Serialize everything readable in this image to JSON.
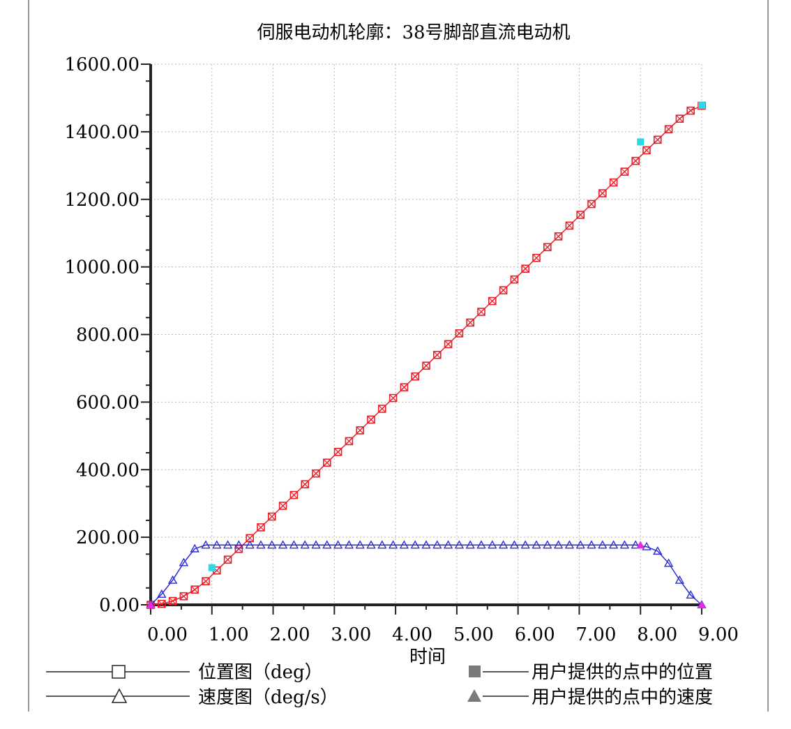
{
  "chart_data": {
    "type": "line",
    "title": "伺服电动机轮廓：38号脚部直流电动机",
    "xlabel": "时间",
    "ylabel": "",
    "xlim": [
      0,
      9
    ],
    "ylim": [
      0,
      1600
    ],
    "x_ticks": [
      "0.00",
      "1.00",
      "2.00",
      "3.00",
      "4.00",
      "5.00",
      "6.00",
      "7.00",
      "8.00",
      "9.00"
    ],
    "y_ticks": [
      "0.00",
      "200.00",
      "400.00",
      "600.00",
      "800.00",
      "1000.00",
      "1200.00",
      "1400.00",
      "1600.00"
    ],
    "grid": true,
    "series": [
      {
        "name": "位置图（deg）",
        "color": "#e8202a",
        "marker": "square-x",
        "x": [
          0,
          0.18,
          0.36,
          0.54,
          0.72,
          0.9,
          1.08,
          1.26,
          1.44,
          1.62,
          1.8,
          1.98,
          2.16,
          2.34,
          2.52,
          2.7,
          2.88,
          3.06,
          3.24,
          3.42,
          3.6,
          3.78,
          3.96,
          4.14,
          4.32,
          4.5,
          4.68,
          4.86,
          5.04,
          5.22,
          5.4,
          5.58,
          5.76,
          5.94,
          6.12,
          6.3,
          6.48,
          6.66,
          6.84,
          7.02,
          7.2,
          7.38,
          7.56,
          7.74,
          7.92,
          8.1,
          8.28,
          8.46,
          8.64,
          8.82,
          9.0
        ],
        "y": [
          0,
          2.8,
          11.3,
          25.4,
          45.1,
          69.8,
          101.7,
          133.6,
          165.5,
          197.4,
          229.3,
          261.2,
          293.1,
          325.0,
          356.8,
          388.7,
          420.6,
          452.5,
          484.4,
          516.3,
          548.2,
          580.1,
          612.0,
          643.9,
          675.8,
          707.7,
          739.6,
          771.5,
          803.4,
          835.3,
          867.1,
          899.0,
          930.9,
          962.8,
          994.7,
          1026.6,
          1058.5,
          1090.4,
          1122.3,
          1154.2,
          1186.1,
          1218.0,
          1249.9,
          1281.8,
          1313.7,
          1345.2,
          1376.3,
          1407.5,
          1438.6,
          1462.5,
          1477.0
        ]
      },
      {
        "name": "速度图（deg/s）",
        "color": "#2a2ad8",
        "marker": "triangle",
        "x": [
          0,
          0.18,
          0.36,
          0.54,
          0.72,
          0.9,
          1.08,
          1.26,
          1.44,
          1.62,
          1.8,
          1.98,
          2.16,
          2.34,
          2.52,
          2.7,
          2.88,
          3.06,
          3.24,
          3.42,
          3.6,
          3.78,
          3.96,
          4.14,
          4.32,
          4.5,
          4.68,
          4.86,
          5.04,
          5.22,
          5.4,
          5.58,
          5.76,
          5.94,
          6.12,
          6.3,
          6.48,
          6.66,
          6.84,
          7.02,
          7.2,
          7.38,
          7.56,
          7.74,
          7.92,
          8.1,
          8.28,
          8.46,
          8.64,
          8.82,
          9.0
        ],
        "y": [
          0,
          31.5,
          73,
          125,
          166,
          177,
          177,
          177,
          177,
          177,
          177,
          177,
          177,
          177,
          177,
          177,
          177,
          177,
          177,
          177,
          177,
          177,
          177,
          177,
          177,
          177,
          177,
          177,
          177,
          177,
          177,
          177,
          177,
          177,
          177,
          177,
          177,
          177,
          177,
          177,
          177,
          177,
          177,
          177,
          177,
          172,
          159,
          123,
          73,
          29,
          0
        ]
      }
    ],
    "user_points": [
      {
        "name": "用户提供的点中的位置",
        "color": "#2ad8e6",
        "shape": "square",
        "x": [
          1.0,
          8.0,
          9.0
        ],
        "y": [
          110,
          1370,
          1478
        ]
      },
      {
        "name": "用户提供的点中的速度",
        "color": "#e62ae6",
        "shape": "triangle",
        "x": [
          0.0,
          8.0,
          9.0
        ],
        "y": [
          0,
          177,
          0
        ]
      }
    ],
    "legend": [
      {
        "label": "位置图（deg）",
        "symbol": "open-square"
      },
      {
        "label": "速度图（deg/s）",
        "symbol": "open-triangle"
      },
      {
        "label": "用户提供的点中的位置",
        "symbol": "filled-square"
      },
      {
        "label": "用户提供的点中的速度",
        "symbol": "filled-triangle"
      }
    ],
    "legend_placement": "bottom"
  }
}
